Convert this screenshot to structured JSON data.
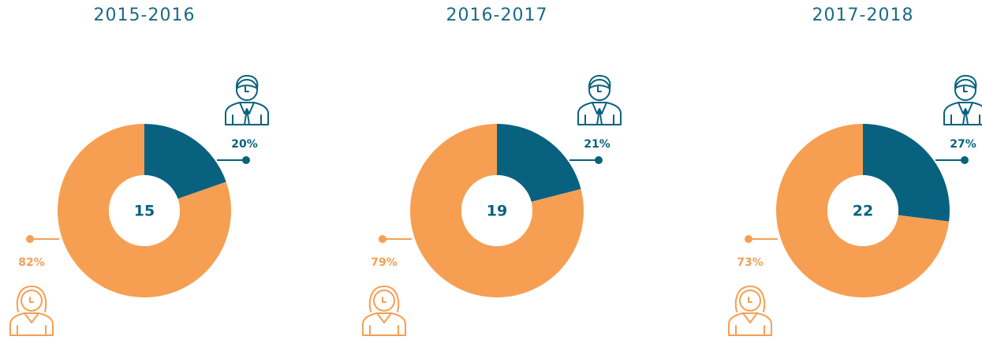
{
  "chart_data": [
    {
      "type": "donut",
      "title": "2015-2016",
      "center_text": "15",
      "values": [
        20,
        82
      ],
      "value_labels": [
        "20%",
        "82%"
      ],
      "colors": [
        "#08627f",
        "#f69f53"
      ]
    },
    {
      "type": "donut",
      "title": "2016-2017",
      "center_text": "19",
      "values": [
        21,
        79
      ],
      "value_labels": [
        "21%",
        "79%"
      ],
      "colors": [
        "#08627f",
        "#f69f53"
      ]
    },
    {
      "type": "donut",
      "title": "2017-2018",
      "center_text": "22",
      "values": [
        27,
        73
      ],
      "value_labels": [
        "27%",
        "73%"
      ],
      "colors": [
        "#08627f",
        "#f69f53"
      ]
    }
  ]
}
